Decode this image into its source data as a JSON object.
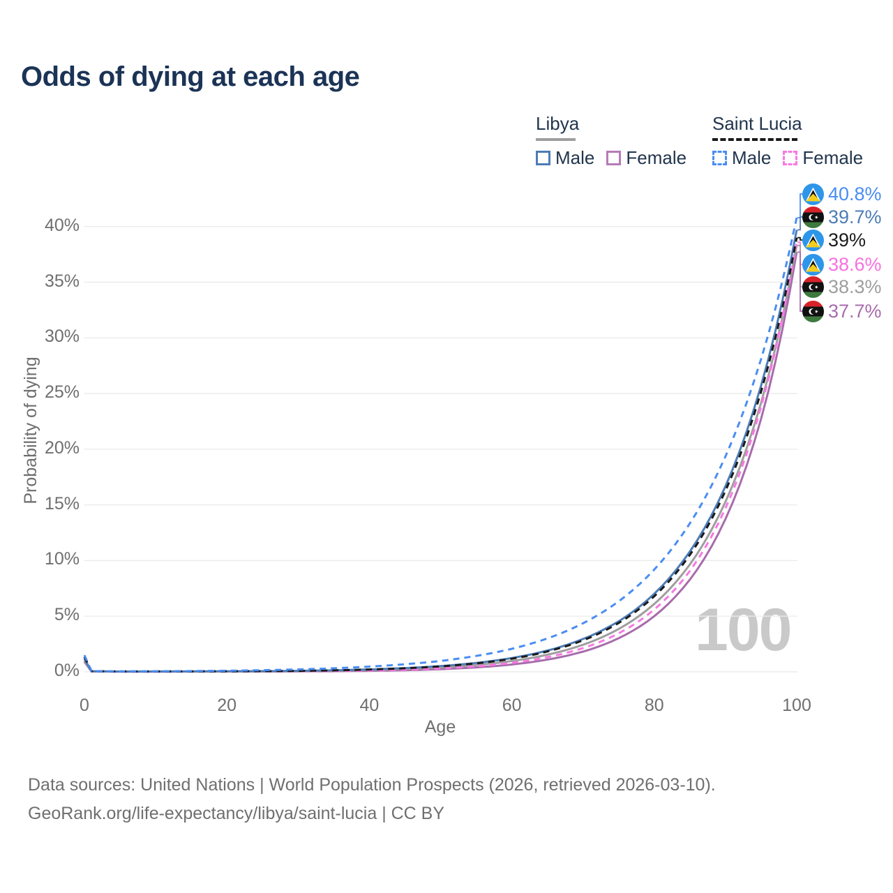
{
  "title": "Odds of dying at each age",
  "watermark": "100",
  "legend": {
    "groups": [
      {
        "title": "Libya",
        "line_style": "solid",
        "underline_color": "#9e9e9e",
        "items": [
          {
            "label": "Male",
            "color": "#4d7cb5"
          },
          {
            "label": "Female",
            "color": "#b77ab8"
          }
        ]
      },
      {
        "title": "Saint Lucia",
        "line_style": "dashed",
        "underline_color": "#1a1a1a",
        "items": [
          {
            "label": "Male",
            "color": "#4a8df2"
          },
          {
            "label": "Female",
            "color": "#f878e2"
          }
        ]
      }
    ]
  },
  "end_labels": [
    {
      "text": "40.8%",
      "value": 40.8,
      "flag": "saint-lucia",
      "color": "#4a8df2"
    },
    {
      "text": "39.7%",
      "value": 39.7,
      "flag": "libya",
      "color": "#4d7cb5"
    },
    {
      "text": "39%",
      "value": 39.0,
      "flag": "saint-lucia",
      "color": "#1a1a1a"
    },
    {
      "text": "38.6%",
      "value": 38.6,
      "flag": "saint-lucia",
      "color": "#f870e0"
    },
    {
      "text": "38.3%",
      "value": 38.3,
      "flag": "libya",
      "color": "#9e9e9e"
    },
    {
      "text": "37.7%",
      "value": 37.7,
      "flag": "libya",
      "color": "#a76cab"
    }
  ],
  "footer": {
    "line1": "Data sources: United Nations | World Population Prospects (2026, retrieved 2026-03-10).",
    "line2": "GeoRank.org/life-expectancy/libya/saint-lucia | CC BY"
  },
  "chart_data": {
    "type": "line",
    "title": "Odds of dying at each age",
    "xlabel": "Age",
    "ylabel": "Probability of dying",
    "xlim": [
      0,
      100
    ],
    "ylim_percent": [
      0,
      43
    ],
    "x_ticks": [
      0,
      20,
      40,
      60,
      80,
      100
    ],
    "y_ticks": [
      "0%",
      "5%",
      "10%",
      "15%",
      "20%",
      "25%",
      "30%",
      "35%",
      "40%"
    ],
    "y_tick_values": [
      0,
      5,
      10,
      15,
      20,
      25,
      30,
      35,
      40
    ],
    "grid": "horizontal",
    "legend_position": "top-right",
    "ages": [
      0,
      1,
      5,
      10,
      15,
      20,
      25,
      30,
      35,
      40,
      45,
      50,
      55,
      60,
      65,
      70,
      75,
      80,
      85,
      90,
      95,
      100
    ],
    "series": [
      {
        "name": "Saint Lucia Male",
        "country": "Saint Lucia",
        "sex": "male",
        "style": "dashed",
        "color": "#4a8df2",
        "end_label": "40.8%",
        "values_percent": [
          1.5,
          0.07,
          0.04,
          0.05,
          0.07,
          0.1,
          0.15,
          0.22,
          0.32,
          0.47,
          0.68,
          0.98,
          1.43,
          2.07,
          3.0,
          4.36,
          6.33,
          9.19,
          13.34,
          19.36,
          28.11,
          40.8
        ]
      },
      {
        "name": "Libya Male",
        "country": "Libya",
        "sex": "male",
        "style": "solid",
        "color": "#4d7cb5",
        "end_label": "39.7%",
        "values_percent": [
          1.15,
          0.05,
          0.03,
          0.035,
          0.04,
          0.05,
          0.06,
          0.09,
          0.14,
          0.22,
          0.34,
          0.52,
          0.8,
          1.24,
          1.91,
          2.95,
          4.54,
          7.01,
          10.81,
          16.68,
          25.73,
          39.7
        ]
      },
      {
        "name": "Saint Lucia Both sexes",
        "country": "Saint Lucia",
        "sex": "both",
        "style": "dashed",
        "color": "#1a1a1a",
        "end_label": "39%",
        "values_percent": [
          1.35,
          0.06,
          0.035,
          0.04,
          0.04,
          0.05,
          0.06,
          0.09,
          0.13,
          0.21,
          0.32,
          0.49,
          0.76,
          1.18,
          1.83,
          2.83,
          4.39,
          6.79,
          10.51,
          16.27,
          25.19,
          39.0
        ]
      },
      {
        "name": "Saint Lucia Female",
        "country": "Saint Lucia",
        "sex": "female",
        "style": "dashed",
        "color": "#f878e2",
        "end_label": "38.6%",
        "values_percent": [
          1.2,
          0.05,
          0.02,
          0.025,
          0.03,
          0.035,
          0.04,
          0.05,
          0.075,
          0.12,
          0.19,
          0.31,
          0.5,
          0.81,
          1.32,
          2.13,
          3.46,
          5.6,
          9.07,
          14.7,
          23.82,
          38.6
        ]
      },
      {
        "name": "Libya Both sexes",
        "country": "Libya",
        "sex": "both",
        "style": "solid",
        "color": "#9e9e9e",
        "end_label": "38.3%",
        "values_percent": [
          1.0,
          0.05,
          0.03,
          0.03,
          0.035,
          0.04,
          0.05,
          0.065,
          0.1,
          0.155,
          0.25,
          0.39,
          0.61,
          0.97,
          1.54,
          2.43,
          3.85,
          6.1,
          9.65,
          15.28,
          24.19,
          38.3
        ]
      },
      {
        "name": "Libya Female",
        "country": "Libya",
        "sex": "female",
        "style": "solid",
        "color": "#a76cab",
        "end_label": "37.7%",
        "values_percent": [
          0.9,
          0.04,
          0.02,
          0.02,
          0.025,
          0.03,
          0.03,
          0.04,
          0.055,
          0.09,
          0.145,
          0.24,
          0.4,
          0.66,
          1.1,
          1.82,
          3.02,
          5.0,
          8.29,
          13.73,
          22.75,
          37.7
        ]
      }
    ]
  }
}
